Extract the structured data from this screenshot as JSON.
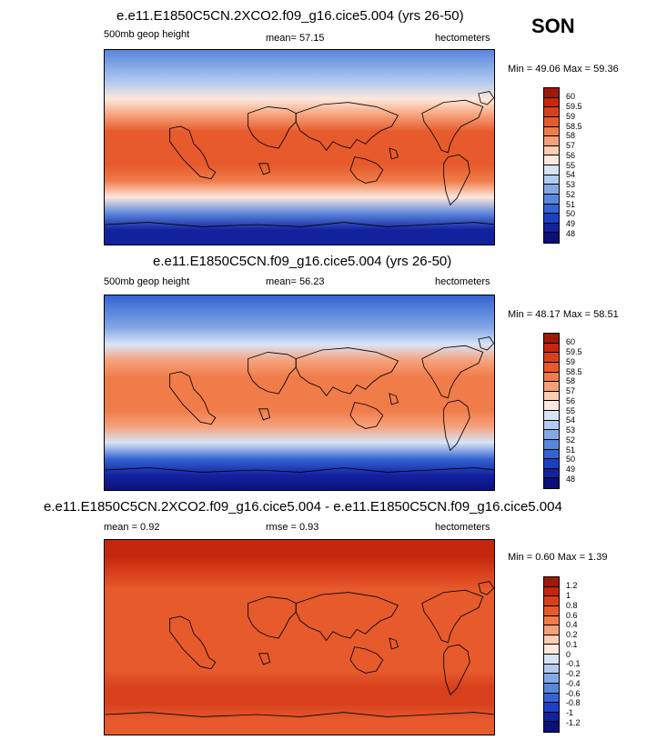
{
  "season": "SON",
  "panels": [
    {
      "title": "e.e11.E1850C5CN.2XCO2.f09_g16.cice5.004 (yrs 26-50)",
      "left_label": "500mb geop height",
      "center_label": "mean=  57.15",
      "right_label": "hectometers",
      "minmax": "Min =  49.06 Max =  59.36",
      "levels": [
        "60",
        "59.5",
        "59",
        "58.5",
        "58",
        "57",
        "56",
        "55",
        "54",
        "53",
        "52",
        "51",
        "50",
        "49",
        "48"
      ],
      "colors": [
        "#9c1a0a",
        "#c4260e",
        "#d8401c",
        "#e65a2c",
        "#f07c4a",
        "#f6a07a",
        "#fbcdb2",
        "#fde8dc",
        "#d8e4f6",
        "#b4cbef",
        "#86a9e6",
        "#5a86dc",
        "#3563d2",
        "#1c3fc4",
        "#12229e",
        "#0a0f7a"
      ],
      "bands": [
        {
          "lat": 90,
          "level": 0.3
        },
        {
          "lat": 75,
          "level": 0.35
        },
        {
          "lat": 60,
          "level": 0.42
        },
        {
          "lat": 45,
          "level": 0.55
        },
        {
          "lat": 30,
          "level": 0.7
        },
        {
          "lat": 15,
          "level": 0.8
        },
        {
          "lat": 0,
          "level": 0.82
        },
        {
          "lat": -15,
          "level": 0.8
        },
        {
          "lat": -30,
          "level": 0.74
        },
        {
          "lat": -45,
          "level": 0.55
        },
        {
          "lat": -60,
          "level": 0.3
        },
        {
          "lat": -75,
          "level": 0.1
        },
        {
          "lat": -90,
          "level": 0.05
        }
      ]
    },
    {
      "title": "e.e11.E1850C5CN.f09_g16.cice5.004 (yrs 26-50)",
      "left_label": "500mb geop height",
      "center_label": "mean=  56.23",
      "right_label": "hectometers",
      "minmax": "Min =  48.17 Max =  58.51",
      "levels": [
        "60",
        "59.5",
        "59",
        "58.5",
        "58",
        "57",
        "56",
        "55",
        "54",
        "53",
        "52",
        "51",
        "50",
        "49",
        "48"
      ],
      "colors": [
        "#9c1a0a",
        "#c4260e",
        "#d8401c",
        "#e65a2c",
        "#f07c4a",
        "#f6a07a",
        "#fbcdb2",
        "#fde8dc",
        "#d8e4f6",
        "#b4cbef",
        "#86a9e6",
        "#5a86dc",
        "#3563d2",
        "#1c3fc4",
        "#12229e",
        "#0a0f7a"
      ],
      "bands": [
        {
          "lat": 90,
          "level": 0.22
        },
        {
          "lat": 75,
          "level": 0.28
        },
        {
          "lat": 60,
          "level": 0.35
        },
        {
          "lat": 45,
          "level": 0.48
        },
        {
          "lat": 30,
          "level": 0.65
        },
        {
          "lat": 15,
          "level": 0.72
        },
        {
          "lat": 0,
          "level": 0.73
        },
        {
          "lat": -15,
          "level": 0.72
        },
        {
          "lat": -30,
          "level": 0.66
        },
        {
          "lat": -45,
          "level": 0.48
        },
        {
          "lat": -60,
          "level": 0.22
        },
        {
          "lat": -75,
          "level": 0.05
        },
        {
          "lat": -90,
          "level": 0.02
        }
      ]
    },
    {
      "title": "e.e11.E1850C5CN.2XCO2.f09_g16.cice5.004 - e.e11.E1850C5CN.f09_g16.cice5.004",
      "left_label": "mean =   0.92",
      "center_label": "rmse =   0.93",
      "right_label": "hectometers",
      "minmax": "Min =  0.60 Max =  1.39",
      "levels": [
        "1.2",
        "1",
        "0.8",
        "0.6",
        "0.4",
        "0.2",
        "0.1",
        "0",
        "-0.1",
        "-0.2",
        "-0.4",
        "-0.6",
        "-0.8",
        "-1",
        "-1.2"
      ],
      "colors": [
        "#9c1a0a",
        "#c4260e",
        "#d8401c",
        "#e65a2c",
        "#f07c4a",
        "#f6a07a",
        "#fbcdb2",
        "#fde8dc",
        "#d8e4f6",
        "#b4cbef",
        "#86a9e6",
        "#5a86dc",
        "#3563d2",
        "#1c3fc4",
        "#12229e",
        "#0a0f7a"
      ],
      "bands": [
        {
          "lat": 90,
          "level": 0.93
        },
        {
          "lat": 75,
          "level": 0.9
        },
        {
          "lat": 60,
          "level": 0.85
        },
        {
          "lat": 45,
          "level": 0.82
        },
        {
          "lat": 30,
          "level": 0.82
        },
        {
          "lat": 15,
          "level": 0.82
        },
        {
          "lat": 0,
          "level": 0.82
        },
        {
          "lat": -15,
          "level": 0.82
        },
        {
          "lat": -30,
          "level": 0.82
        },
        {
          "lat": -45,
          "level": 0.86
        },
        {
          "lat": -60,
          "level": 0.84
        },
        {
          "lat": -75,
          "level": 0.82
        },
        {
          "lat": -90,
          "level": 0.82
        }
      ]
    }
  ]
}
